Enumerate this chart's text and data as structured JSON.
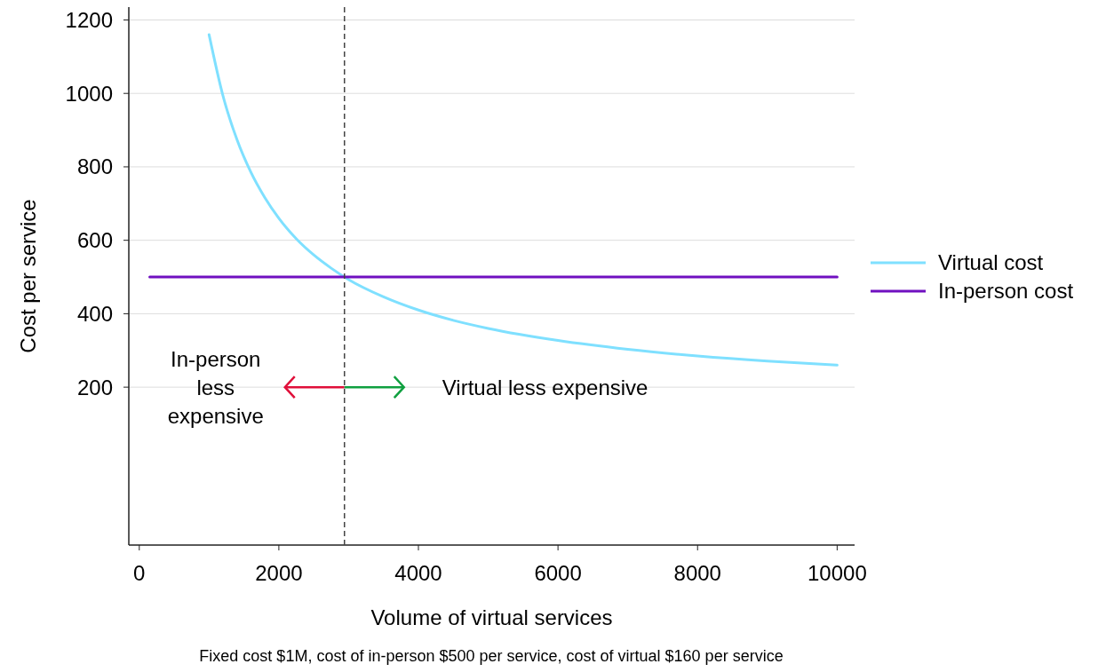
{
  "chart_data": {
    "type": "line",
    "xlabel": "Volume of virtual services",
    "ylabel": "Cost per service",
    "xlim": [
      -150,
      10250
    ],
    "ylim": [
      -230,
      1235
    ],
    "xticks": [
      0,
      2000,
      4000,
      6000,
      8000,
      10000
    ],
    "yticks": [
      200,
      400,
      600,
      800,
      1000,
      1200
    ],
    "grid": "y",
    "legend": "right",
    "line_style": "solid",
    "marker": "none",
    "series": [
      {
        "name": "Virtual cost",
        "color": "#7fe0ff",
        "x": [
          1000,
          1200,
          1400,
          1600,
          1800,
          2000,
          2250,
          2500,
          2750,
          3000,
          3500,
          4000,
          4500,
          5000,
          6000,
          7000,
          8000,
          9000,
          10000
        ],
        "values": [
          1160,
          993,
          874,
          785,
          716,
          660,
          604,
          560,
          524,
          493,
          446,
          410,
          382,
          360,
          327,
          303,
          285,
          271,
          260
        ]
      },
      {
        "name": "In-person cost",
        "color": "#7010c0",
        "x": [
          150,
          10000
        ],
        "values": [
          500,
          500
        ]
      }
    ],
    "ref_lines": [
      {
        "axis": "x",
        "value": 2940,
        "line_style": "dashed",
        "color": "#444444"
      }
    ],
    "annotations": [
      {
        "text": "In-person less expensive",
        "x": 2940,
        "y": 200
      },
      "Virtual less expensive",
      "Fixed cost $1M, cost of in-person $500 per service, cost of virtual $160 per service"
    ]
  }
}
